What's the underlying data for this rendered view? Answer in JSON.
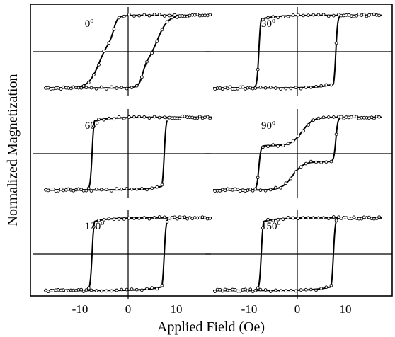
{
  "chart_data": {
    "type": "line",
    "xlabel": "Applied Field (Oe)",
    "ylabel": "Normalized Magnetization",
    "x_ticks": [
      -10,
      0,
      10
    ],
    "xlim": [
      -17.5,
      17.5
    ],
    "ylim": [
      -1.15,
      1.15
    ],
    "grid": false,
    "panels": [
      {
        "label": "0",
        "unit": "o",
        "row": 0,
        "col": 0,
        "shape": "stepped",
        "coercive": 3.0,
        "plateau": 0.4,
        "width": 0.25,
        "step_field": 6.0
      },
      {
        "label": "30",
        "unit": "o",
        "row": 0,
        "col": 1,
        "shape": "square",
        "coercive": 8.0,
        "width": 0.25,
        "slope": 0.025
      },
      {
        "label": "60",
        "unit": "o",
        "row": 1,
        "col": 0,
        "shape": "square",
        "coercive": 7.5,
        "width": 0.2,
        "slope": 0.03
      },
      {
        "label": "90",
        "unit": "o",
        "row": 1,
        "col": 1,
        "shape": "stepped_square",
        "coercive": 8.0,
        "plateau": 0.22,
        "width": 0.25,
        "step_field": 1.0
      },
      {
        "label": "120",
        "unit": "o",
        "row": 2,
        "col": 0,
        "shape": "square",
        "coercive": 7.5,
        "width": 0.2,
        "slope": 0.03
      },
      {
        "label": "150",
        "unit": "o",
        "row": 2,
        "col": 1,
        "shape": "square",
        "coercive": 7.5,
        "width": 0.25,
        "slope": 0.035
      }
    ]
  }
}
